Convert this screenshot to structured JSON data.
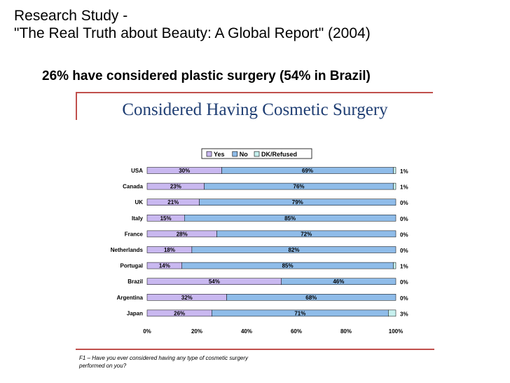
{
  "page": {
    "heading_line1": "Research Study -",
    "heading_line2": "\"The Real Truth about Beauty: A Global Report\" (2004)",
    "subheading": "26% have considered plastic surgery (54% in Brazil)",
    "chart_title": "Considered Having Cosmetic Surgery",
    "footnote_line1": "F1 – Have you ever considered having any type of cosmetic surgery",
    "footnote_line2": "performed on you?"
  },
  "colors": {
    "yes": "#c9b8f0",
    "no": "#8fbce9",
    "dk": "#c6f0ee",
    "rule": "#c0504d",
    "title": "#1f3e73"
  },
  "chart_data": {
    "type": "bar",
    "orientation": "horizontal",
    "stacked": true,
    "title": "Considered Having Cosmetic Surgery",
    "categories": [
      "USA",
      "Canada",
      "UK",
      "Italy",
      "France",
      "Netherlands",
      "Portugal",
      "Brazil",
      "Argentina",
      "Japan"
    ],
    "series": [
      {
        "name": "Yes",
        "values": [
          30,
          23,
          21,
          15,
          28,
          18,
          14,
          54,
          32,
          26
        ],
        "color": "#c9b8f0"
      },
      {
        "name": "No",
        "values": [
          69,
          76,
          79,
          85,
          72,
          82,
          85,
          46,
          68,
          71
        ],
        "color": "#8fbce9"
      },
      {
        "name": "DK/Refused",
        "values": [
          1,
          1,
          0,
          0,
          0,
          0,
          1,
          0,
          0,
          3
        ],
        "color": "#c6f0ee"
      }
    ],
    "xlim": [
      0,
      100
    ],
    "xticks": [
      "0%",
      "20%",
      "40%",
      "60%",
      "80%",
      "100%"
    ],
    "legend_position": "top",
    "value_format": "percent"
  }
}
